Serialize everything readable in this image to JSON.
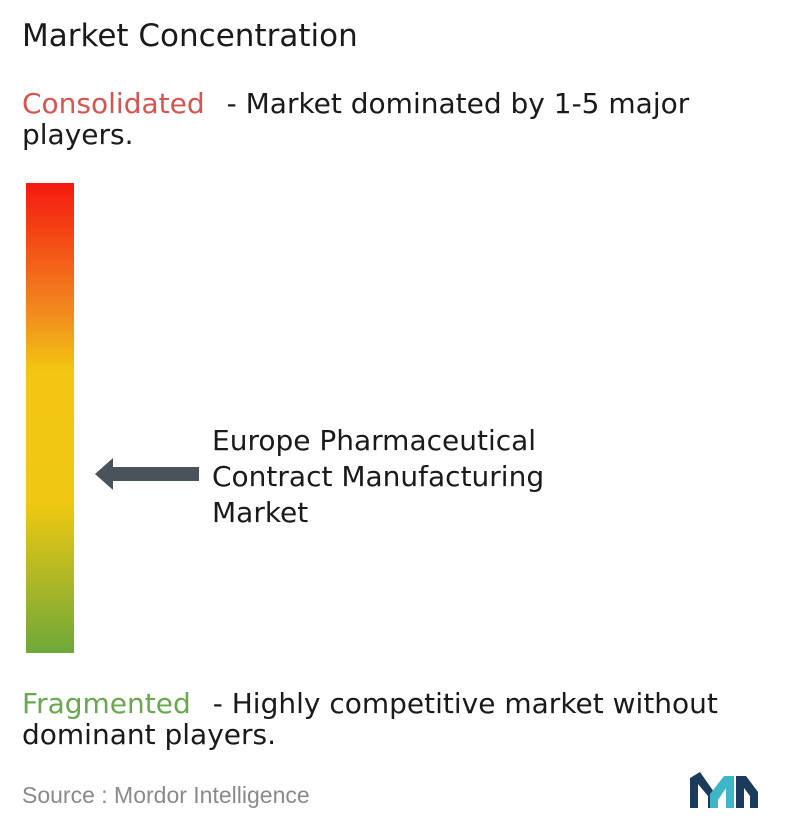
{
  "title": "Market Concentration",
  "consolidated": {
    "label": "Consolidated",
    "description": "- Market dominated by 1-5 major players.",
    "color": "#d9534f"
  },
  "fragmented": {
    "label": "Fragmented",
    "description": "- Highly competitive market without dominant players.",
    "color": "#6aa84f"
  },
  "chart_data": {
    "type": "concentration-scale",
    "scale_top": "Consolidated",
    "scale_bottom": "Fragmented",
    "marker_label": "Europe Pharmaceutical Contract Manufacturing Market",
    "marker_position": 0.62,
    "gradient_colors": [
      "#f5190f",
      "#f28c1e",
      "#f3c612",
      "#f0c811",
      "#6ea83a"
    ]
  },
  "source": {
    "text": "Source :  Mordor Intelligence"
  },
  "logo": {
    "icon": "mordor-intelligence-logo",
    "colors": [
      "#1b3a5c",
      "#3fb6c6"
    ]
  }
}
